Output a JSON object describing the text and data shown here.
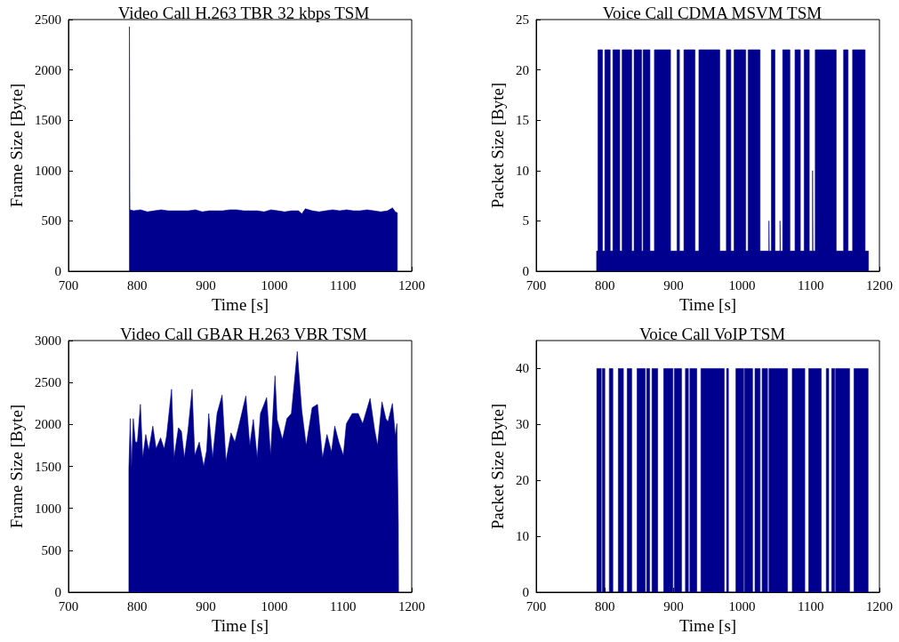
{
  "chart_data": [
    {
      "type": "area",
      "title": "Video Call H.263 TBR 32 kbps TSM",
      "xlabel": "Time [s]",
      "ylabel": "Frame Size [Byte]",
      "color": "#00008f",
      "xlim": [
        700,
        1200
      ],
      "xticks": [
        700,
        800,
        900,
        1000,
        1100,
        1200
      ],
      "ylim": [
        0,
        2500
      ],
      "yticks": [
        0,
        500,
        1000,
        1500,
        2000,
        2500
      ],
      "x": [
        788.8,
        788.8,
        789.5,
        789.5,
        795,
        805,
        815,
        825,
        835,
        845,
        855,
        865,
        875,
        885,
        895,
        905,
        915,
        925,
        935,
        945,
        955,
        965,
        975,
        985,
        995,
        1005,
        1015,
        1025,
        1035,
        1040,
        1045,
        1055,
        1065,
        1075,
        1085,
        1095,
        1105,
        1115,
        1125,
        1135,
        1145,
        1155,
        1165,
        1172,
        1176,
        1179,
        1179
      ],
      "values": [
        0,
        2430,
        2430,
        610,
        600,
        610,
        590,
        600,
        610,
        600,
        600,
        600,
        600,
        610,
        590,
        600,
        600,
        600,
        610,
        610,
        600,
        600,
        600,
        590,
        610,
        600,
        590,
        600,
        600,
        570,
        620,
        600,
        590,
        600,
        610,
        600,
        610,
        600,
        600,
        610,
        600,
        590,
        600,
        630,
        590,
        580,
        0
      ]
    },
    {
      "type": "area",
      "title": "Voice Call CDMA MSVM TSM",
      "xlabel": "Time [s]",
      "ylabel": "Packet Size [Byte]",
      "color": "#00008f",
      "xlim": [
        700,
        1200
      ],
      "xticks": [
        700,
        800,
        900,
        1000,
        1100,
        1200
      ],
      "ylim": [
        0,
        25
      ],
      "yticks": [
        0,
        5,
        10,
        15,
        20,
        25
      ],
      "x": [
        788,
        788,
        790,
        790,
        796.5,
        796.5,
        800,
        800,
        807.8,
        807.8,
        811.7,
        811.7,
        821.7,
        821.7,
        825.2,
        825.2,
        839.1,
        839.1,
        842.6,
        842.6,
        853.5,
        853.5,
        855.7,
        855.7,
        865.7,
        865.7,
        872.2,
        872.2,
        895.7,
        895.7,
        905.2,
        905.2,
        908.7,
        908.7,
        915.2,
        915.2,
        931.3,
        931.3,
        937,
        937,
        967.4,
        967.4,
        977,
        977,
        983.5,
        983.5,
        988.3,
        988.3,
        1005.2,
        1005.2,
        1008.7,
        1008.7,
        1026.1,
        1026.1,
        1039,
        1039,
        1039.5,
        1039.5,
        1042.6,
        1042.6,
        1047.8,
        1047.8,
        1055.2,
        1055.2,
        1055.7,
        1055.7,
        1059.1,
        1059.1,
        1069.6,
        1069.6,
        1077,
        1077,
        1084.8,
        1084.8,
        1090.4,
        1090.4,
        1097.8,
        1097.8,
        1102.6,
        1102.6,
        1103.1,
        1103.1,
        1106.5,
        1106.5,
        1137,
        1137,
        1147.8,
        1147.8,
        1154.3,
        1154.3,
        1160.9,
        1160.9,
        1179.1,
        1179.1,
        1184,
        1184
      ],
      "values": [
        0,
        2,
        2,
        22,
        22,
        2,
        2,
        22,
        22,
        2,
        2,
        22,
        22,
        2,
        2,
        22,
        22,
        2,
        2,
        22,
        22,
        2,
        2,
        22,
        22,
        2,
        2,
        22,
        22,
        2,
        2,
        22,
        22,
        2,
        2,
        22,
        22,
        2,
        2,
        22,
        22,
        2,
        2,
        22,
        22,
        2,
        2,
        22,
        22,
        2,
        2,
        22,
        22,
        2,
        2,
        5,
        5,
        2,
        2,
        22,
        22,
        2,
        2,
        5,
        5,
        2,
        2,
        22,
        22,
        2,
        2,
        22,
        22,
        2,
        2,
        22,
        22,
        2,
        2,
        10,
        10,
        2,
        2,
        22,
        22,
        2,
        2,
        22,
        22,
        2,
        2,
        22,
        22,
        2,
        2,
        0
      ]
    },
    {
      "type": "area",
      "title": "Video Call GBAR H.263 VBR TSM",
      "xlabel": "Time [s]",
      "ylabel": "Frame Size [Byte]",
      "color": "#00008f",
      "xlim": [
        700,
        1200
      ],
      "xticks": [
        700,
        800,
        900,
        1000,
        1100,
        1200
      ],
      "ylim": [
        0,
        3000
      ],
      "yticks": [
        0,
        500,
        1000,
        1500,
        2000,
        2500,
        3000
      ],
      "x": [
        788,
        788,
        790.0,
        791.8,
        794.4,
        797.4,
        800.4,
        804.8,
        808.2,
        812.6,
        816.9,
        822.9,
        827.7,
        834.2,
        839.4,
        842.9,
        850.2,
        853.7,
        860.2,
        864.5,
        868.8,
        874.0,
        880.1,
        884.0,
        890.5,
        897.0,
        901.3,
        904.3,
        910.0,
        916.5,
        923.8,
        929.4,
        936.8,
        942.4,
        952.4,
        958.4,
        964.1,
        969.3,
        974.9,
        979.7,
        988.7,
        994.4,
        1000.9,
        1003.9,
        1011.7,
        1018.2,
        1024.7,
        1033.3,
        1039.8,
        1046.3,
        1055.0,
        1062.8,
        1070.1,
        1076.6,
        1083.1,
        1087.9,
        1093.9,
        1100.4,
        1104.8,
        1113.4,
        1122.1,
        1128.6,
        1132.9,
        1139.4,
        1145.9,
        1150.2,
        1156.7,
        1162.3,
        1165.4,
        1171.9,
        1176.2,
        1178.4,
        1180.5,
        1180.8
      ],
      "values": [
        0,
        1480,
        2070,
        1480,
        2070,
        1790,
        1790,
        2240,
        1600,
        1880,
        1690,
        1980,
        1710,
        1840,
        1710,
        1860,
        2420,
        1600,
        1960,
        1920,
        1600,
        1920,
        2420,
        1630,
        1790,
        1500,
        1690,
        2130,
        1600,
        2130,
        2350,
        1560,
        1900,
        1790,
        2130,
        2340,
        1750,
        2060,
        1600,
        2130,
        2320,
        1630,
        2580,
        2060,
        1820,
        2070,
        2130,
        2870,
        2170,
        1750,
        2200,
        2240,
        1600,
        1880,
        1670,
        1980,
        1790,
        1630,
        2010,
        2130,
        2130,
        2010,
        2130,
        2310,
        1940,
        1750,
        2270,
        2070,
        2030,
        2250,
        1860,
        2010,
        820,
        0
      ]
    },
    {
      "type": "area",
      "title": "Voice Call VoIP TSM",
      "xlabel": "Time [s]",
      "ylabel": "Packet Size [Byte]",
      "color": "#00008f",
      "xlim": [
        700,
        1200
      ],
      "xticks": [
        700,
        800,
        900,
        1000,
        1100,
        1200
      ],
      "ylim": [
        0,
        45
      ],
      "yticks": [
        0,
        10,
        20,
        30,
        40
      ],
      "x": [
        788.3,
        788.3,
        794.8,
        794.8,
        796.5,
        796.5,
        800,
        800,
        806.5,
        806.5,
        811.7,
        811.7,
        819.6,
        819.6,
        827,
        827,
        832.6,
        832.6,
        839.1,
        839.1,
        847,
        847,
        858.7,
        858.7,
        860.9,
        860.9,
        865.2,
        865.2,
        868.7,
        868.7,
        877,
        877,
        885.7,
        885.7,
        899.1,
        899.1,
        901.3,
        901.3,
        911.7,
        911.7,
        917.4,
        917.4,
        921.7,
        921.7,
        923.9,
        923.9,
        933.9,
        933.9,
        940,
        940,
        973.9,
        973.9,
        977.4,
        977.4,
        980,
        980,
        990.9,
        990.9,
        1002.2,
        1002.2,
        1003.5,
        1003.5,
        1015.2,
        1015.2,
        1018.7,
        1018.7,
        1026.1,
        1026.1,
        1029.1,
        1029.1,
        1037,
        1037,
        1039.1,
        1039.1,
        1066.1,
        1066.1,
        1073,
        1073,
        1091.3,
        1091.3,
        1097,
        1097,
        1115.2,
        1115.2,
        1122.6,
        1122.6,
        1126.1,
        1126.1,
        1130.4,
        1130.4,
        1134.8,
        1134.8,
        1136.1,
        1136.1,
        1156.5,
        1156.5,
        1163,
        1163,
        1183.5,
        1183.5
      ],
      "values": [
        0,
        40,
        40,
        0,
        0,
        40,
        40,
        0,
        0,
        40,
        40,
        0,
        0,
        40,
        40,
        0,
        0,
        40,
        40,
        0,
        0,
        40,
        40,
        0,
        0,
        40,
        40,
        0,
        0,
        40,
        40,
        0,
        0,
        40,
        40,
        0,
        0,
        40,
        40,
        0,
        0,
        40,
        40,
        0,
        0,
        40,
        40,
        0,
        0,
        40,
        40,
        0,
        0,
        40,
        40,
        0,
        0,
        40,
        40,
        0,
        0,
        40,
        40,
        0,
        0,
        40,
        40,
        0,
        0,
        40,
        40,
        0,
        0,
        40,
        40,
        0,
        0,
        40,
        40,
        0,
        0,
        40,
        40,
        0,
        0,
        40,
        40,
        0,
        0,
        40,
        40,
        0,
        0,
        40,
        40,
        0,
        0,
        40,
        40,
        0
      ]
    }
  ]
}
